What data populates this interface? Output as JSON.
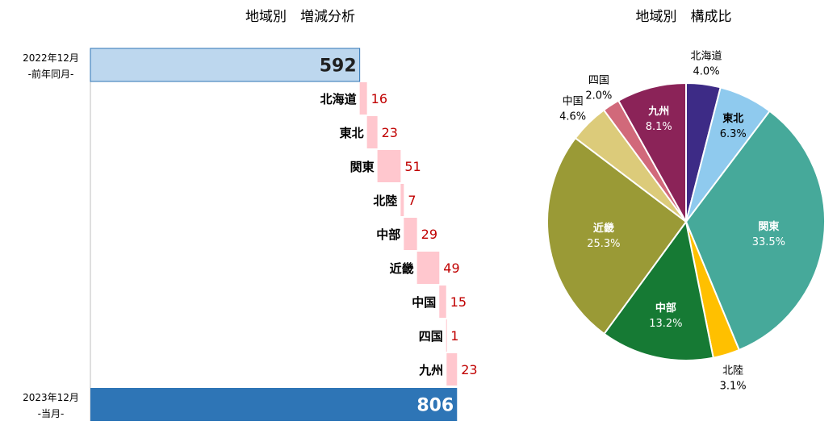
{
  "chart_data": [
    {
      "type": "bar",
      "subtype": "waterfall",
      "title": "地域別　増減分析",
      "start": {
        "label_lines": [
          "2022年12月",
          "-前年同月-"
        ],
        "value": 592,
        "color": "#bdd7ee"
      },
      "end": {
        "label_lines": [
          "2023年12月",
          "-当月-"
        ],
        "value": 806,
        "color": "#2e75b6"
      },
      "categories": [
        "北海道",
        "東北",
        "関東",
        "北陸",
        "中部",
        "近畿",
        "中国",
        "四国",
        "九州"
      ],
      "values": [
        16,
        23,
        51,
        7,
        29,
        49,
        15,
        1,
        23
      ],
      "increment_color": "#ffc7ce",
      "increment_label_color": "#c00000"
    },
    {
      "type": "pie",
      "title": "地域別　構成比",
      "slices": [
        {
          "name": "北海道",
          "pct": "4.0%",
          "value": 4.0,
          "color": "#3d2b86",
          "label_inside": false,
          "label_color": "#000000"
        },
        {
          "name": "東北",
          "pct": "6.3%",
          "value": 6.3,
          "color": "#8fcaee",
          "label_inside": true,
          "label_color": "#000000"
        },
        {
          "name": "関東",
          "pct": "33.5%",
          "value": 33.5,
          "color": "#46a99a",
          "label_inside": true,
          "label_color": "#ffffff"
        },
        {
          "name": "北陸",
          "pct": "3.1%",
          "value": 3.1,
          "color": "#ffc000",
          "label_inside": false,
          "label_color": "#000000"
        },
        {
          "name": "中部",
          "pct": "13.2%",
          "value": 13.2,
          "color": "#167a34",
          "label_inside": true,
          "label_color": "#ffffff"
        },
        {
          "name": "近畿",
          "pct": "25.3%",
          "value": 25.3,
          "color": "#9a9a36",
          "label_inside": true,
          "label_color": "#ffffff"
        },
        {
          "name": "中国",
          "pct": "4.6%",
          "value": 4.6,
          "color": "#dccb7a",
          "label_inside": false,
          "label_color": "#000000"
        },
        {
          "name": "四国",
          "pct": "2.0%",
          "value": 2.0,
          "color": "#d1697a",
          "label_inside": false,
          "label_color": "#000000"
        },
        {
          "name": "九州",
          "pct": "8.1%",
          "value": 8.1,
          "color": "#8b2358",
          "label_inside": true,
          "label_color": "#ffffff"
        }
      ]
    }
  ]
}
